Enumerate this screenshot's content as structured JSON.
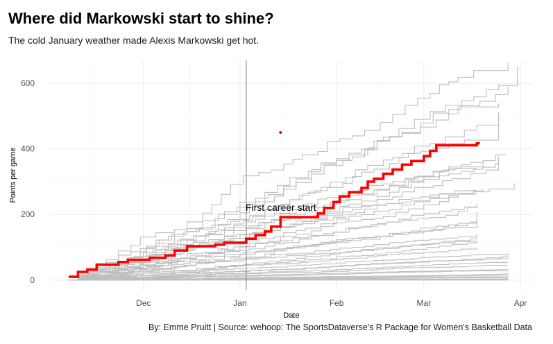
{
  "header": {
    "title": "Where did Markowski start to shine?",
    "subtitle": "The cold January weather made Alexis Markowski get hot.",
    "caption": "By: Emme Pruitt  |  Source: wehoop: The SportsDataverse's R Package for Women's Basketball Data"
  },
  "chart_data": {
    "type": "line",
    "title": "Where did Markowski start to shine?",
    "subtitle": "The cold January weather made Alexis Markowski get hot.",
    "xlabel": "Date",
    "ylabel": "Points per game",
    "x_range": [
      "2022-11-01",
      "2023-04-05"
    ],
    "ylim": [
      -30,
      670
    ],
    "y_ticks": [
      0,
      200,
      400,
      600
    ],
    "x_ticks": [
      {
        "label": "Dec",
        "date": "2022-12-01"
      },
      {
        "label": "Jan",
        "date": "2023-01-01"
      },
      {
        "label": "Feb",
        "date": "2023-02-01"
      },
      {
        "label": "Mar",
        "date": "2023-03-01"
      },
      {
        "label": "Apr",
        "date": "2023-04-01"
      }
    ],
    "grid": true,
    "colors": {
      "highlight": "#ff0000",
      "others": "#bebebe",
      "vline": "#7a7a7a",
      "grid": "#ebebeb"
    },
    "annotation": {
      "text": "First career start",
      "date": "2023-01-01",
      "y": 222
    },
    "vline": {
      "date": "2023-01-03"
    },
    "point": {
      "date": "2023-01-14",
      "y": 450
    },
    "highlight_series": {
      "name": "Alexis Markowski",
      "points": [
        [
          "2022-11-07",
          10
        ],
        [
          "2022-11-10",
          10
        ],
        [
          "2022-11-10",
          25
        ],
        [
          "2022-11-13",
          25
        ],
        [
          "2022-11-13",
          32
        ],
        [
          "2022-11-16",
          32
        ],
        [
          "2022-11-16",
          47
        ],
        [
          "2022-11-23",
          47
        ],
        [
          "2022-11-23",
          55
        ],
        [
          "2022-11-26",
          55
        ],
        [
          "2022-11-26",
          62
        ],
        [
          "2022-12-03",
          62
        ],
        [
          "2022-12-03",
          68
        ],
        [
          "2022-12-08",
          68
        ],
        [
          "2022-12-08",
          75
        ],
        [
          "2022-12-11",
          75
        ],
        [
          "2022-12-11",
          90
        ],
        [
          "2022-12-15",
          90
        ],
        [
          "2022-12-15",
          103
        ],
        [
          "2022-12-24",
          103
        ],
        [
          "2022-12-24",
          108
        ],
        [
          "2022-12-27",
          108
        ],
        [
          "2022-12-27",
          114
        ],
        [
          "2023-01-03",
          114
        ],
        [
          "2023-01-03",
          126
        ],
        [
          "2023-01-06",
          126
        ],
        [
          "2023-01-06",
          137
        ],
        [
          "2023-01-09",
          137
        ],
        [
          "2023-01-09",
          148
        ],
        [
          "2023-01-11",
          148
        ],
        [
          "2023-01-11",
          163
        ],
        [
          "2023-01-14",
          163
        ],
        [
          "2023-01-14",
          192
        ],
        [
          "2023-01-26",
          192
        ],
        [
          "2023-01-26",
          203
        ],
        [
          "2023-01-28",
          203
        ],
        [
          "2023-01-28",
          220
        ],
        [
          "2023-01-31",
          220
        ],
        [
          "2023-01-31",
          238
        ],
        [
          "2023-02-02",
          238
        ],
        [
          "2023-02-02",
          255
        ],
        [
          "2023-02-05",
          255
        ],
        [
          "2023-02-05",
          268
        ],
        [
          "2023-02-09",
          268
        ],
        [
          "2023-02-09",
          281
        ],
        [
          "2023-02-11",
          281
        ],
        [
          "2023-02-11",
          300
        ],
        [
          "2023-02-13",
          300
        ],
        [
          "2023-02-13",
          309
        ],
        [
          "2023-02-16",
          309
        ],
        [
          "2023-02-16",
          324
        ],
        [
          "2023-02-19",
          324
        ],
        [
          "2023-02-19",
          337
        ],
        [
          "2023-02-22",
          337
        ],
        [
          "2023-02-22",
          352
        ],
        [
          "2023-02-25",
          352
        ],
        [
          "2023-02-25",
          363
        ],
        [
          "2023-03-01",
          363
        ],
        [
          "2023-03-01",
          378
        ],
        [
          "2023-03-03",
          378
        ],
        [
          "2023-03-03",
          394
        ],
        [
          "2023-03-05",
          394
        ],
        [
          "2023-03-05",
          411
        ],
        [
          "2023-03-18",
          411
        ],
        [
          "2023-03-18",
          417
        ],
        [
          "2023-03-19",
          417
        ]
      ]
    },
    "other_series": [
      {
        "end": "2023-03-31",
        "final": 652
      },
      {
        "end": "2023-03-28",
        "final": 662
      },
      {
        "end": "2023-03-28",
        "final": 592
      },
      {
        "end": "2023-03-25",
        "final": 538
      },
      {
        "end": "2023-03-25",
        "final": 512
      },
      {
        "end": "2023-03-25",
        "final": 503
      },
      {
        "end": "2023-03-27",
        "final": 385
      },
      {
        "end": "2023-03-25",
        "final": 376
      },
      {
        "end": "2023-03-25",
        "final": 370
      },
      {
        "end": "2023-03-20",
        "final": 358
      },
      {
        "end": "2023-03-18",
        "final": 340
      },
      {
        "end": "2023-03-30",
        "final": 295
      },
      {
        "end": "2023-03-20",
        "final": 298
      },
      {
        "end": "2023-03-18",
        "final": 273
      },
      {
        "end": "2023-03-18",
        "final": 262
      },
      {
        "end": "2023-03-18",
        "final": 247
      },
      {
        "end": "2023-03-18",
        "final": 230
      },
      {
        "end": "2023-03-18",
        "final": 210
      },
      {
        "end": "2023-03-18",
        "final": 185
      },
      {
        "end": "2023-03-18",
        "final": 180
      },
      {
        "end": "2023-03-18",
        "final": 140
      },
      {
        "end": "2023-03-18",
        "final": 135
      },
      {
        "end": "2023-03-18",
        "final": 132
      },
      {
        "end": "2023-03-18",
        "final": 118
      },
      {
        "end": "2023-03-18",
        "final": 98
      },
      {
        "end": "2023-03-28",
        "final": 82
      },
      {
        "end": "2023-03-28",
        "final": 75
      },
      {
        "end": "2023-03-28",
        "final": 68
      },
      {
        "end": "2023-03-28",
        "final": 55
      },
      {
        "end": "2023-03-28",
        "final": 45
      },
      {
        "end": "2023-03-28",
        "final": 35
      },
      {
        "end": "2023-03-28",
        "final": 28
      },
      {
        "end": "2023-03-28",
        "final": 22
      },
      {
        "end": "2023-03-28",
        "final": 15
      },
      {
        "end": "2023-03-28",
        "final": 10
      },
      {
        "end": "2023-03-28",
        "final": 7
      },
      {
        "end": "2023-03-28",
        "final": 4
      },
      {
        "end": "2023-03-28",
        "final": 2
      },
      {
        "end": "2023-03-28",
        "final": 0
      }
    ]
  }
}
